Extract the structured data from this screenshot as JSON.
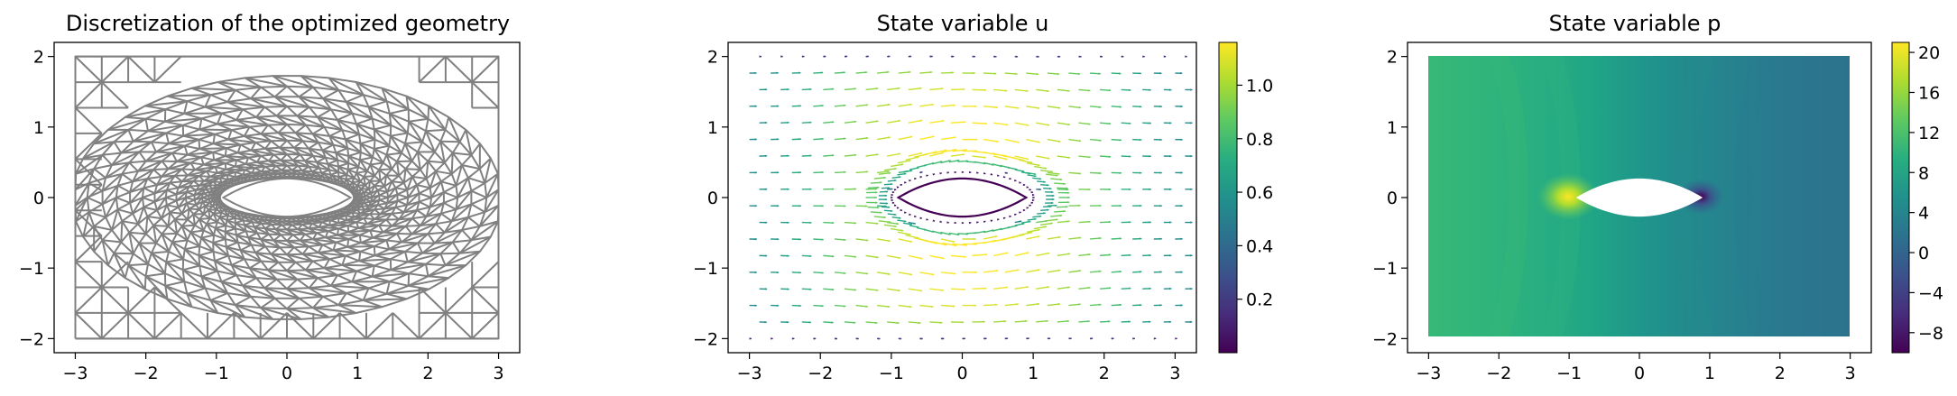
{
  "chart_data": [
    {
      "type": "mesh",
      "title": "Discretization of the optimized geometry",
      "xlim": [
        -3.3,
        3.3
      ],
      "ylim": [
        -2.2,
        2.2
      ],
      "xticks": [
        -3,
        -2,
        -1,
        0,
        1,
        2,
        3
      ],
      "yticks": [
        -2,
        -1,
        0,
        1,
        2
      ],
      "xtick_labels": [
        "−3",
        "−2",
        "−1",
        "0",
        "1",
        "2",
        "3"
      ],
      "ytick_labels": [
        "−2",
        "−1",
        "0",
        "1",
        "2"
      ],
      "domain": {
        "x": [
          -3,
          3
        ],
        "y": [
          -2,
          2
        ]
      },
      "obstacle": {
        "x": [
          -0.9,
          0.9
        ],
        "half_height": 0.27
      },
      "mesh_color": "#808080"
    },
    {
      "type": "quiver",
      "title": "State variable u",
      "xlim": [
        -3.3,
        3.3
      ],
      "ylim": [
        -2.2,
        2.2
      ],
      "xticks": [
        -3,
        -2,
        -1,
        0,
        1,
        2,
        3
      ],
      "yticks": [
        -2,
        -1,
        0,
        1,
        2
      ],
      "xtick_labels": [
        "−3",
        "−2",
        "−1",
        "0",
        "1",
        "2",
        "3"
      ],
      "ytick_labels": [
        "−2",
        "−1",
        "0",
        "1",
        "2"
      ],
      "obstacle": {
        "x": [
          -0.9,
          0.9
        ],
        "half_height": 0.27
      },
      "colorbar": {
        "min": 0,
        "max": 1.16,
        "ticks": [
          0.2,
          0.4,
          0.6,
          0.8,
          1.0
        ],
        "tick_labels": [
          "0.2",
          "0.4",
          "0.6",
          "0.8",
          "1.0"
        ]
      },
      "colormap": "viridis"
    },
    {
      "type": "contourf",
      "title": "State variable p",
      "xlim": [
        -3.3,
        3.3
      ],
      "ylim": [
        -2.2,
        2.2
      ],
      "xticks": [
        -3,
        -2,
        -1,
        0,
        1,
        2,
        3
      ],
      "yticks": [
        -2,
        -1,
        0,
        1,
        2
      ],
      "xtick_labels": [
        "−3",
        "−2",
        "−1",
        "0",
        "1",
        "2",
        "3"
      ],
      "ytick_labels": [
        "−2",
        "−1",
        "0",
        "1",
        "2"
      ],
      "domain": {
        "x": [
          -3,
          3
        ],
        "y": [
          -2,
          2
        ]
      },
      "obstacle": {
        "x": [
          -0.9,
          0.9
        ],
        "half_height": 0.27
      },
      "colorbar": {
        "min": -10,
        "max": 21,
        "ticks": [
          -8,
          -4,
          0,
          4,
          8,
          12,
          16,
          20
        ],
        "tick_labels": [
          "−8",
          "−4",
          "0",
          "4",
          "8",
          "12",
          "16",
          "20"
        ]
      },
      "colormap": "viridis"
    }
  ]
}
